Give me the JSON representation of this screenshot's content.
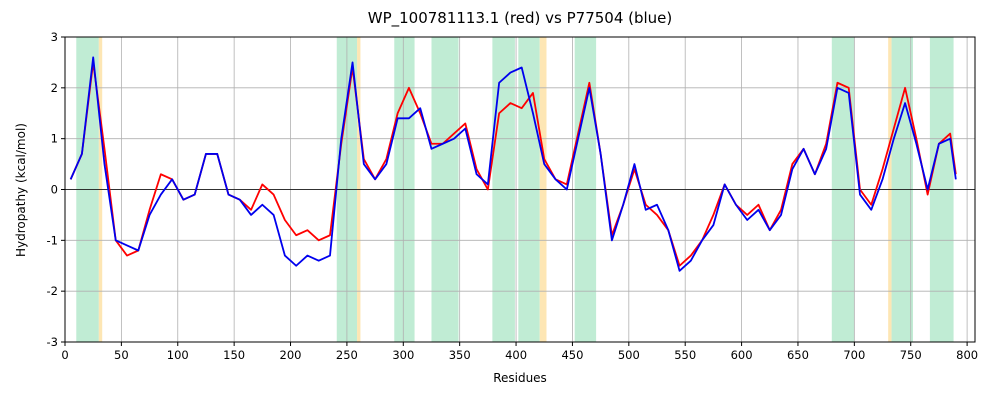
{
  "chart_data": {
    "type": "line",
    "title": "WP_100781113.1 (red) vs P77504 (blue)",
    "x_label": "Residues",
    "y_label": "Hydropathy (kcal/mol)",
    "x": [
      5,
      15,
      25,
      35,
      45,
      55,
      65,
      75,
      85,
      95,
      105,
      115,
      125,
      135,
      145,
      155,
      165,
      175,
      185,
      195,
      205,
      215,
      225,
      235,
      245,
      255,
      265,
      275,
      285,
      295,
      305,
      315,
      325,
      335,
      345,
      355,
      365,
      375,
      385,
      395,
      405,
      415,
      425,
      435,
      445,
      455,
      465,
      475,
      485,
      495,
      505,
      515,
      525,
      535,
      545,
      555,
      565,
      575,
      585,
      595,
      605,
      615,
      625,
      635,
      645,
      655,
      665,
      675,
      685,
      695,
      705,
      715,
      725,
      735,
      745,
      755,
      765,
      775,
      785,
      790
    ],
    "series": [
      {
        "name": "WP_100781113.1",
        "color": "#ff0000",
        "values": [
          0.2,
          0.7,
          2.5,
          0.8,
          -1.0,
          -1.3,
          -1.2,
          -0.4,
          0.3,
          0.2,
          -0.2,
          -0.1,
          0.7,
          0.7,
          -0.1,
          -0.2,
          -0.4,
          0.1,
          -0.1,
          -0.6,
          -0.9,
          -0.8,
          -1.0,
          -0.9,
          0.9,
          2.4,
          0.6,
          0.2,
          0.6,
          1.5,
          2.0,
          1.5,
          0.9,
          0.9,
          1.1,
          1.3,
          0.4,
          0.0,
          1.5,
          1.7,
          1.6,
          1.9,
          0.6,
          0.2,
          0.1,
          1.1,
          2.1,
          0.7,
          -0.9,
          -0.3,
          0.4,
          -0.3,
          -0.5,
          -0.8,
          -1.5,
          -1.3,
          -1.0,
          -0.5,
          0.1,
          -0.3,
          -0.5,
          -0.3,
          -0.8,
          -0.4,
          0.5,
          0.8,
          0.3,
          0.9,
          2.1,
          2.0,
          0.0,
          -0.3,
          0.4,
          1.2,
          2.0,
          1.0,
          -0.1,
          0.9,
          1.1,
          0.3
        ]
      },
      {
        "name": "P77504",
        "color": "#0000ee",
        "values": [
          0.2,
          0.7,
          2.6,
          0.5,
          -1.0,
          -1.1,
          -1.2,
          -0.5,
          -0.1,
          0.2,
          -0.2,
          -0.1,
          0.7,
          0.7,
          -0.1,
          -0.2,
          -0.5,
          -0.3,
          -0.5,
          -1.3,
          -1.5,
          -1.3,
          -1.4,
          -1.3,
          1.0,
          2.5,
          0.5,
          0.2,
          0.5,
          1.4,
          1.4,
          1.6,
          0.8,
          0.9,
          1.0,
          1.2,
          0.3,
          0.1,
          2.1,
          2.3,
          2.4,
          1.5,
          0.5,
          0.2,
          0.0,
          1.0,
          2.0,
          0.7,
          -1.0,
          -0.3,
          0.5,
          -0.4,
          -0.3,
          -0.8,
          -1.6,
          -1.4,
          -1.0,
          -0.7,
          0.1,
          -0.3,
          -0.6,
          -0.4,
          -0.8,
          -0.5,
          0.4,
          0.8,
          0.3,
          0.8,
          2.0,
          1.9,
          -0.1,
          -0.4,
          0.2,
          1.0,
          1.7,
          0.9,
          0.0,
          0.9,
          1.0,
          0.2
        ]
      }
    ],
    "regions": [
      {
        "start": 10,
        "end": 30,
        "color": "#c0ecd4"
      },
      {
        "start": 30,
        "end": 33,
        "color": "#fde6b4"
      },
      {
        "start": 241,
        "end": 259,
        "color": "#c0ecd4"
      },
      {
        "start": 259,
        "end": 262,
        "color": "#fde6b4"
      },
      {
        "start": 292,
        "end": 310,
        "color": "#c0ecd4"
      },
      {
        "start": 325,
        "end": 349,
        "color": "#c0ecd4"
      },
      {
        "start": 379,
        "end": 399,
        "color": "#c0ecd4"
      },
      {
        "start": 402,
        "end": 421,
        "color": "#c0ecd4"
      },
      {
        "start": 421,
        "end": 427,
        "color": "#fde6b4"
      },
      {
        "start": 452,
        "end": 471,
        "color": "#c0ecd4"
      },
      {
        "start": 680,
        "end": 700,
        "color": "#c0ecd4"
      },
      {
        "start": 730,
        "end": 733,
        "color": "#fde6b4"
      },
      {
        "start": 733,
        "end": 752,
        "color": "#c0ecd4"
      },
      {
        "start": 767,
        "end": 788,
        "color": "#c0ecd4"
      }
    ],
    "xlim": [
      0,
      807
    ],
    "ylim": [
      -3,
      3
    ],
    "xticks": [
      0,
      50,
      100,
      150,
      200,
      250,
      300,
      350,
      400,
      450,
      500,
      550,
      600,
      650,
      700,
      750,
      800
    ],
    "yticks": [
      -3,
      -2,
      -1,
      0,
      1,
      2,
      3
    ],
    "grid": true,
    "zero_line": true
  }
}
